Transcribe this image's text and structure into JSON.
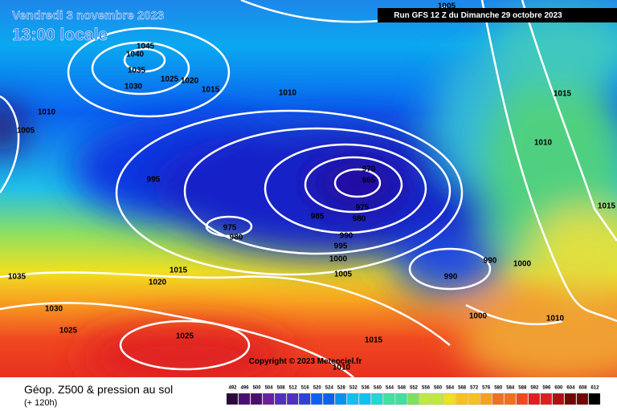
{
  "header": {
    "date": "Vendredi 3 novembre 2023",
    "time": "13:00 locale",
    "run": "Run GFS 12 Z du Dimanche 29 octobre 2023"
  },
  "isobar_labels": [
    1045,
    1040,
    1035,
    1030,
    1025,
    1020,
    1015,
    1010,
    1005,
    1010,
    1005,
    995,
    970,
    965,
    975,
    980,
    985,
    975,
    980,
    990,
    995,
    1000,
    1005,
    990,
    1000,
    990,
    1015,
    1010,
    1015,
    1035,
    1020,
    1015,
    1030,
    1025,
    1025,
    1000,
    1010,
    1015,
    1010
  ],
  "copyright": "Copyright © 2023 Meteociel.fr",
  "footer": {
    "title": "Géop. Z500 & pression au sol",
    "lead": "(+ 120h)"
  },
  "color_scale": [
    492,
    496,
    500,
    504,
    508,
    512,
    516,
    520,
    524,
    528,
    532,
    536,
    540,
    544,
    548,
    552,
    556,
    560,
    564,
    568,
    572,
    576,
    580,
    584,
    588,
    592,
    596,
    600,
    604,
    608,
    612
  ]
}
